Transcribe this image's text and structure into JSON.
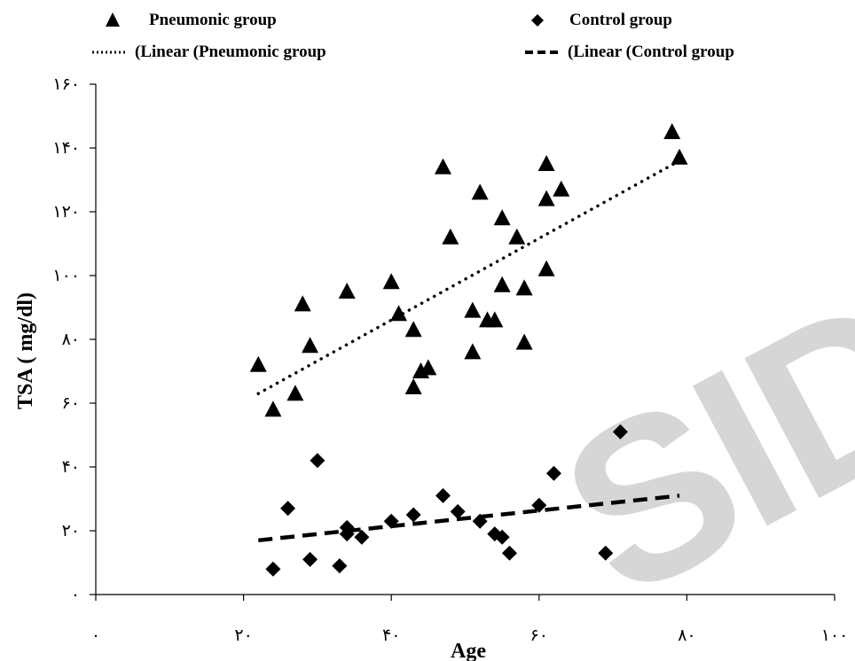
{
  "chart_data": {
    "type": "scatter",
    "title": "",
    "xlabel": "Age",
    "ylabel": "TSA ( mg/dl)",
    "xlim": [
      0,
      100
    ],
    "ylim": [
      0,
      160
    ],
    "x_ticks": [
      {
        "value": 0,
        "label": "٠"
      },
      {
        "value": 20,
        "label": "٢٠"
      },
      {
        "value": 40,
        "label": "۴٠"
      },
      {
        "value": 60,
        "label": "۶٠"
      },
      {
        "value": 80,
        "label": "٨٠"
      },
      {
        "value": 100,
        "label": "١٠٠"
      }
    ],
    "y_ticks": [
      {
        "value": 0,
        "label": "٠"
      },
      {
        "value": 20,
        "label": "٢٠"
      },
      {
        "value": 40,
        "label": "۴٠"
      },
      {
        "value": 60,
        "label": "۶٠"
      },
      {
        "value": 80,
        "label": "٨٠"
      },
      {
        "value": 100,
        "label": "١٠٠"
      },
      {
        "value": 120,
        "label": "١٢٠"
      },
      {
        "value": 140,
        "label": "١۴٠"
      },
      {
        "value": 160,
        "label": "١۶٠"
      }
    ],
    "grid": false,
    "legend_position": "top",
    "series": [
      {
        "name": "Pneumonic group",
        "marker": "triangle",
        "color": "#000000",
        "points": [
          [
            22,
            72
          ],
          [
            24,
            58
          ],
          [
            27,
            63
          ],
          [
            28,
            91
          ],
          [
            29,
            78
          ],
          [
            34,
            95
          ],
          [
            40,
            98
          ],
          [
            41,
            88
          ],
          [
            43,
            83
          ],
          [
            43,
            65
          ],
          [
            44,
            70
          ],
          [
            45,
            71
          ],
          [
            47,
            134
          ],
          [
            48,
            112
          ],
          [
            51,
            76
          ],
          [
            51,
            89
          ],
          [
            52,
            126
          ],
          [
            53,
            86
          ],
          [
            54,
            86
          ],
          [
            55,
            97
          ],
          [
            55,
            118
          ],
          [
            57,
            112
          ],
          [
            58,
            79
          ],
          [
            58,
            96
          ],
          [
            61,
            102
          ],
          [
            61,
            135
          ],
          [
            61,
            124
          ],
          [
            63,
            127
          ],
          [
            78,
            145
          ],
          [
            79,
            137
          ]
        ]
      },
      {
        "name": "Control group",
        "marker": "diamond",
        "color": "#000000",
        "points": [
          [
            24,
            8
          ],
          [
            26,
            27
          ],
          [
            29,
            11
          ],
          [
            30,
            42
          ],
          [
            33,
            9
          ],
          [
            34,
            19
          ],
          [
            34,
            21
          ],
          [
            36,
            18
          ],
          [
            40,
            23
          ],
          [
            43,
            25
          ],
          [
            47,
            31
          ],
          [
            49,
            26
          ],
          [
            52,
            23
          ],
          [
            54,
            19
          ],
          [
            55,
            18
          ],
          [
            56,
            13
          ],
          [
            60,
            28
          ],
          [
            62,
            38
          ],
          [
            69,
            13
          ],
          [
            71,
            51
          ]
        ]
      }
    ],
    "trendlines": [
      {
        "name": "(Linear (Pneumonic group",
        "style": "dotted",
        "from": [
          22,
          63
        ],
        "to": [
          79,
          136
        ]
      },
      {
        "name": "(Linear (Control group",
        "style": "dashed",
        "from": [
          22,
          17
        ],
        "to": [
          79,
          31
        ]
      }
    ],
    "legend_entries": [
      {
        "label": "Pneumonic group",
        "symbol": "triangle"
      },
      {
        "label": "Control group",
        "symbol": "diamond"
      },
      {
        "label": "(Linear (Pneumonic group",
        "symbol": "dotted-line"
      },
      {
        "label": "(Linear (Control group",
        "symbol": "dashed-line"
      }
    ],
    "watermark": "SID"
  }
}
